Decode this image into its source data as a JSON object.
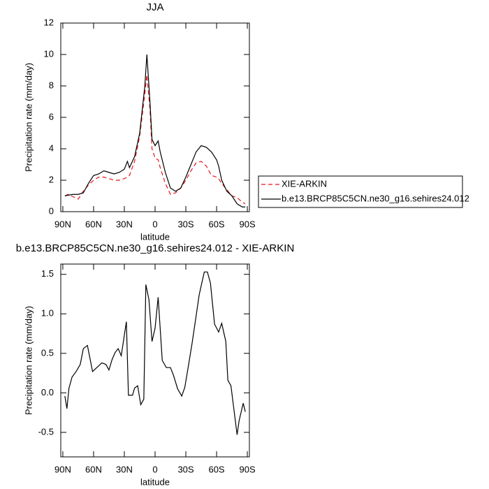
{
  "chart_data": [
    {
      "type": "line",
      "title": "JJA",
      "xlabel": "latitude",
      "ylabel": "Precipitation rate (mm/day)",
      "x": [
        88,
        85,
        80,
        75,
        70,
        65,
        60,
        55,
        50,
        45,
        40,
        35,
        30,
        27,
        25,
        20,
        15,
        10,
        8,
        5,
        3,
        0,
        -3,
        -5,
        -10,
        -15,
        -20,
        -25,
        -30,
        -35,
        -40,
        -45,
        -50,
        -55,
        -60,
        -62,
        -65,
        -70,
        -75,
        -80,
        -85,
        -88
      ],
      "series": [
        {
          "name": "XIE-ARKIN",
          "color": "#e8141a",
          "dashed": true,
          "values": [
            1.0,
            1.1,
            0.95,
            0.8,
            1.3,
            1.7,
            2.0,
            2.2,
            2.2,
            2.1,
            2.0,
            2.0,
            2.1,
            2.2,
            2.3,
            3.2,
            4.8,
            7.5,
            8.7,
            6.5,
            4.0,
            3.4,
            3.3,
            2.8,
            1.8,
            1.1,
            1.2,
            1.5,
            2.0,
            2.6,
            3.1,
            3.2,
            2.9,
            2.3,
            2.2,
            2.1,
            1.8,
            1.4,
            1.0,
            0.9,
            0.6,
            0.5
          ]
        },
        {
          "name": "b.e13.BRCP85C5CN.ne30_g16.sehires24.012",
          "color": "#000000",
          "dashed": false,
          "values": [
            1.0,
            1.05,
            1.1,
            1.1,
            1.2,
            1.8,
            2.3,
            2.4,
            2.6,
            2.5,
            2.4,
            2.5,
            2.7,
            3.2,
            2.8,
            3.5,
            5.0,
            8.0,
            10.0,
            7.0,
            4.6,
            4.2,
            4.5,
            3.8,
            2.5,
            1.5,
            1.3,
            1.5,
            2.2,
            3.0,
            3.8,
            4.2,
            4.1,
            3.8,
            3.3,
            2.9,
            2.0,
            1.3,
            1.0,
            0.5,
            0.3,
            0.3
          ]
        }
      ],
      "xlim": [
        92,
        -92
      ],
      "xticks": [
        {
          "value": 90,
          "label": "90N"
        },
        {
          "value": 60,
          "label": "60N"
        },
        {
          "value": 30,
          "label": "30N"
        },
        0,
        {
          "value": -30,
          "label": "30S"
        },
        {
          "value": -60,
          "label": "60S"
        },
        {
          "value": -90,
          "label": "90S"
        }
      ],
      "ylim": [
        0,
        12
      ],
      "yticks": [
        0,
        2,
        4,
        6,
        8,
        10,
        12
      ],
      "legend": "right"
    },
    {
      "type": "line",
      "title": "b.e13.BRCP85C5CN.ne30_g16.sehires24.012 - XIE-ARKIN",
      "xlabel": "latitude",
      "ylabel": "Precipitation rate (mm/day)",
      "x": [
        88,
        86,
        84,
        81,
        77,
        73,
        70,
        66,
        61,
        56,
        52,
        48,
        45,
        42,
        39,
        36,
        33,
        30,
        28,
        26,
        22,
        20,
        17,
        14,
        11,
        9,
        6,
        3,
        0,
        -3,
        -7,
        -11,
        -15,
        -18,
        -22,
        -26,
        -29,
        -33,
        -36,
        -40,
        -43,
        -48,
        -51,
        -54,
        -58,
        -62,
        -65,
        -69,
        -71,
        -74,
        -80,
        -82,
        -86,
        -88
      ],
      "values": [
        -0.04,
        -0.2,
        0.06,
        0.2,
        0.27,
        0.36,
        0.56,
        0.6,
        0.27,
        0.33,
        0.38,
        0.36,
        0.29,
        0.42,
        0.51,
        0.56,
        0.47,
        0.73,
        0.9,
        -0.03,
        -0.03,
        0.06,
        0.09,
        -0.15,
        -0.08,
        1.37,
        1.18,
        0.65,
        0.82,
        1.21,
        0.41,
        0.32,
        0.32,
        0.22,
        0.05,
        -0.04,
        0.07,
        0.38,
        0.62,
        0.97,
        1.24,
        1.53,
        1.53,
        1.39,
        0.87,
        0.77,
        0.88,
        0.65,
        0.16,
        0.09,
        -0.53,
        -0.35,
        -0.13,
        -0.24
      ],
      "color": "#000000",
      "xlim": [
        92,
        -92
      ],
      "xticks": [
        {
          "value": 90,
          "label": "90N"
        },
        {
          "value": 60,
          "label": "60N"
        },
        {
          "value": 30,
          "label": "30N"
        },
        0,
        {
          "value": -30,
          "label": "30S"
        },
        {
          "value": -60,
          "label": "60S"
        },
        {
          "value": -90,
          "label": "90S"
        }
      ],
      "ylim": [
        -0.81,
        1.63
      ],
      "yticks": [
        -0.5,
        {
          "value": 0,
          "label": "0.0"
        },
        0.5,
        {
          "value": 1,
          "label": "1.0"
        },
        1.5
      ]
    }
  ]
}
